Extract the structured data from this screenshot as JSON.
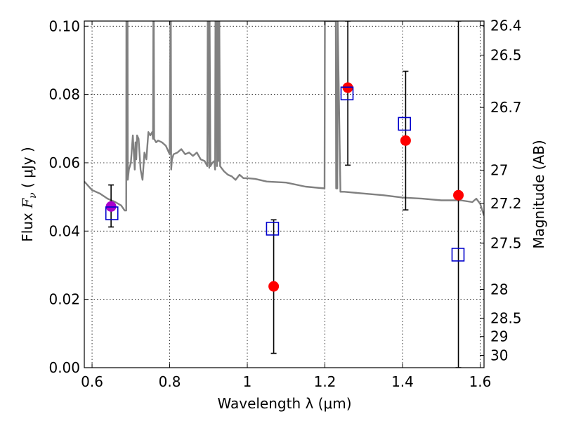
{
  "chart_data": {
    "type": "scatter",
    "title": "",
    "xlabel": "Wavelength  λ (μm)",
    "ylabel_parts": {
      "pre": "Flux  ",
      "sym": "F",
      "sub": "ν",
      "post": "  ( μJy )"
    },
    "ylabel_right": "Magnitude (AB)",
    "xlim": [
      0.58,
      1.61
    ],
    "ylim": [
      0.0,
      0.1015
    ],
    "x_ticks": [
      0.6,
      0.8,
      1.0,
      1.2,
      1.4,
      1.6
    ],
    "x_tick_labels": [
      "0.6",
      "0.8",
      "1",
      "1.2",
      "1.4",
      "1.6"
    ],
    "y_ticks": [
      0.0,
      0.02,
      0.04,
      0.06,
      0.08,
      0.1
    ],
    "y_tick_labels": [
      "0.00",
      "0.02",
      "0.04",
      "0.06",
      "0.08",
      "0.10"
    ],
    "right_ticks": [
      {
        "label": "26.4",
        "flux": 0.1002
      },
      {
        "label": "26.5",
        "flux": 0.0915
      },
      {
        "label": "26.7",
        "flux": 0.0762
      },
      {
        "label": "27",
        "flux": 0.0578
      },
      {
        "label": "27.2",
        "flux": 0.0481
      },
      {
        "label": "27.5",
        "flux": 0.0365
      },
      {
        "label": "28",
        "flux": 0.0229
      },
      {
        "label": "28.5",
        "flux": 0.0145
      },
      {
        "label": "29",
        "flux": 0.0091
      },
      {
        "label": "30",
        "flux": 0.0036
      }
    ],
    "grid": true,
    "colors": {
      "observed": "#ff0000",
      "observed_first": "#aa00cc",
      "model_points": "#0000cc",
      "sed": "#808080",
      "errorbar": "#000000"
    },
    "series": [
      {
        "role": "observed",
        "points": [
          {
            "x": 0.649,
            "y": 0.0472,
            "ylo": 0.0412,
            "yhi": 0.0535
          },
          {
            "x": 1.068,
            "y": 0.0238,
            "ylo": 0.0042,
            "yhi": 0.0433
          },
          {
            "x": 1.259,
            "y": 0.082,
            "ylo": 0.0593,
            "yhi": 0.1015
          },
          {
            "x": 1.408,
            "y": 0.0665,
            "ylo": 0.0462,
            "yhi": 0.0868
          },
          {
            "x": 1.544,
            "y": 0.0505,
            "ylo": 0.0,
            "yhi": 0.1015
          }
        ]
      },
      {
        "role": "model",
        "points": [
          {
            "x": 0.651,
            "y": 0.0452
          },
          {
            "x": 1.065,
            "y": 0.0407
          },
          {
            "x": 1.257,
            "y": 0.0803
          },
          {
            "x": 1.405,
            "y": 0.0714
          },
          {
            "x": 1.543,
            "y": 0.0331
          }
        ]
      },
      {
        "role": "sed",
        "x": [
          0.58,
          0.6,
          0.62,
          0.64,
          0.66,
          0.675,
          0.684,
          0.688,
          0.6885,
          0.69,
          0.6915,
          0.692,
          0.695,
          0.7,
          0.705,
          0.71,
          0.712,
          0.714,
          0.716,
          0.72,
          0.725,
          0.73,
          0.735,
          0.74,
          0.745,
          0.75,
          0.755,
          0.757,
          0.758,
          0.759,
          0.76,
          0.765,
          0.77,
          0.78,
          0.79,
          0.8,
          0.802,
          0.803,
          0.804,
          0.806,
          0.81,
          0.82,
          0.83,
          0.84,
          0.85,
          0.86,
          0.87,
          0.88,
          0.89,
          0.897,
          0.898,
          0.9,
          0.902,
          0.903,
          0.905,
          0.91,
          0.915,
          0.917,
          0.918,
          0.92,
          0.922,
          0.923,
          0.925,
          0.926,
          0.928,
          0.93,
          0.94,
          0.95,
          0.96,
          0.97,
          0.98,
          0.99,
          1.0,
          1.02,
          1.05,
          1.1,
          1.15,
          1.199,
          1.2,
          1.202,
          1.21,
          1.22,
          1.228,
          1.229,
          1.232,
          1.233,
          1.24,
          1.25,
          1.3,
          1.35,
          1.4,
          1.45,
          1.5,
          1.55,
          1.58,
          1.59,
          1.6,
          1.61
        ],
        "y": [
          0.0545,
          0.052,
          0.051,
          0.0495,
          0.0485,
          0.0475,
          0.046,
          0.046,
          0.1015,
          0.1015,
          0.1015,
          0.055,
          0.058,
          0.06,
          0.068,
          0.058,
          0.066,
          0.061,
          0.068,
          0.067,
          0.058,
          0.055,
          0.063,
          0.061,
          0.069,
          0.068,
          0.069,
          0.067,
          0.1015,
          0.1015,
          0.067,
          0.066,
          0.0665,
          0.066,
          0.065,
          0.0625,
          0.1015,
          0.1015,
          0.058,
          0.061,
          0.0625,
          0.063,
          0.064,
          0.0625,
          0.063,
          0.062,
          0.063,
          0.061,
          0.0605,
          0.059,
          0.1015,
          0.1015,
          0.0585,
          0.1015,
          0.059,
          0.06,
          0.0605,
          0.058,
          0.1015,
          0.1015,
          0.059,
          0.1015,
          0.1015,
          0.0605,
          0.1015,
          0.059,
          0.0575,
          0.0565,
          0.056,
          0.055,
          0.0565,
          0.0555,
          0.0555,
          0.0553,
          0.0545,
          0.0542,
          0.053,
          0.0525,
          0.1015,
          0.1015,
          0.1015,
          0.1015,
          0.1015,
          0.0525,
          0.0525,
          0.1015,
          0.0515,
          0.0515,
          0.051,
          0.0505,
          0.0498,
          0.0495,
          0.049,
          0.049,
          0.0485,
          0.0495,
          0.048,
          0.0445
        ]
      }
    ]
  }
}
